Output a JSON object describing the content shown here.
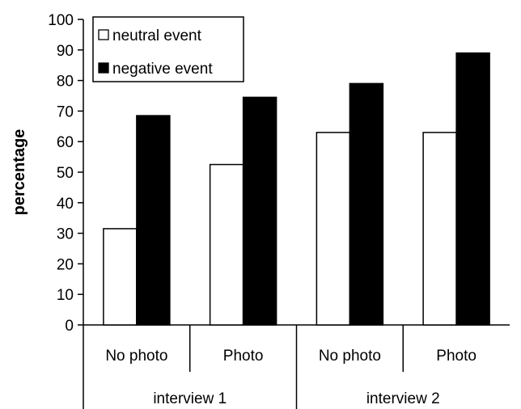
{
  "chart_data": {
    "type": "bar",
    "ylabel": "percentage",
    "ylim": [
      0,
      100
    ],
    "ytick_step": 10,
    "grid": false,
    "legend_position": "top-left",
    "groups": [
      {
        "label": "interview 1",
        "categories": [
          "No photo",
          "Photo"
        ]
      },
      {
        "label": "interview 2",
        "categories": [
          "No photo",
          "Photo"
        ]
      }
    ],
    "categories": [
      "No photo",
      "Photo",
      "No photo",
      "Photo"
    ],
    "series": [
      {
        "name": "neutral event",
        "color": "#ffffff",
        "values": [
          31.5,
          52.5,
          63,
          63
        ]
      },
      {
        "name": "negative event",
        "color": "#000000",
        "values": [
          68.5,
          74.5,
          79,
          89
        ]
      }
    ]
  }
}
